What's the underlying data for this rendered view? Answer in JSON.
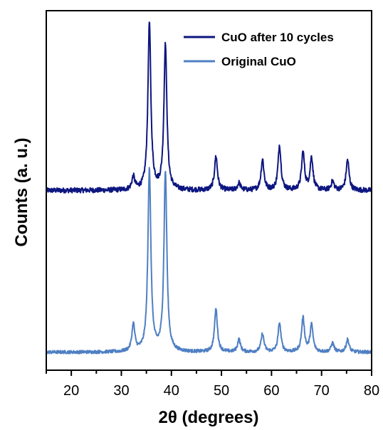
{
  "chart_data": {
    "type": "line",
    "title": "",
    "xlabel": "2θ (degrees)",
    "ylabel": "Counts (a. u.)",
    "xlim": [
      15,
      80
    ],
    "ylim": [
      0,
      10
    ],
    "xticks": [
      20,
      30,
      40,
      50,
      60,
      70,
      80
    ],
    "yticks_shown": false,
    "grid": false,
    "legend_position": "top-right",
    "series": [
      {
        "name": "CuO after 10 cycles",
        "color": "#0d1680",
        "baseline": 5.0,
        "noise": 0.07,
        "peaks": [
          {
            "x": 32.4,
            "height": 0.35
          },
          {
            "x": 35.6,
            "height": 4.65
          },
          {
            "x": 38.8,
            "height": 4.05
          },
          {
            "x": 48.9,
            "height": 0.95
          },
          {
            "x": 53.5,
            "height": 0.2
          },
          {
            "x": 58.2,
            "height": 0.85
          },
          {
            "x": 61.6,
            "height": 1.25
          },
          {
            "x": 66.3,
            "height": 1.05
          },
          {
            "x": 68.0,
            "height": 0.9
          },
          {
            "x": 72.2,
            "height": 0.25
          },
          {
            "x": 75.2,
            "height": 0.85
          }
        ]
      },
      {
        "name": "Original CuO",
        "color": "#4f7fc3",
        "baseline": 0.5,
        "noise": 0.045,
        "peaks": [
          {
            "x": 32.4,
            "height": 0.75
          },
          {
            "x": 35.6,
            "height": 5.1
          },
          {
            "x": 38.8,
            "height": 5.0
          },
          {
            "x": 48.9,
            "height": 1.2
          },
          {
            "x": 53.5,
            "height": 0.35
          },
          {
            "x": 58.2,
            "height": 0.5
          },
          {
            "x": 61.6,
            "height": 0.8
          },
          {
            "x": 66.3,
            "height": 0.95
          },
          {
            "x": 68.0,
            "height": 0.75
          },
          {
            "x": 72.2,
            "height": 0.25
          },
          {
            "x": 75.2,
            "height": 0.35
          }
        ]
      }
    ]
  }
}
